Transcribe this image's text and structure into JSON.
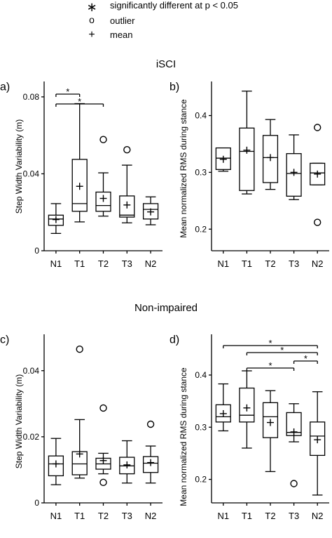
{
  "legend": {
    "items": [
      {
        "symbol": "∗",
        "text": "significantly different at p < 0.05"
      },
      {
        "symbol": "o",
        "text": "outlier"
      },
      {
        "symbol": "+",
        "text": "mean"
      }
    ]
  },
  "headings": {
    "group_top": "iSCI",
    "group_bottom": "Non-impaired"
  },
  "chart_data": [
    {
      "type": "box",
      "panel_label": "a)",
      "ylabel": "Step Width Variability (m)",
      "categories": [
        "N1",
        "T1",
        "T2",
        "T3",
        "N2"
      ],
      "ylim": [
        0,
        0.088
      ],
      "yticks": [
        0,
        0.04,
        0.08
      ],
      "ytick_labels": [
        "0",
        "0.04",
        "0.08"
      ],
      "boxes": [
        {
          "name": "N1",
          "whislo": 0.009,
          "q1": 0.0132,
          "med": 0.0165,
          "q3": 0.0185,
          "whishi": 0.0245,
          "mean": 0.0162,
          "fliers": []
        },
        {
          "name": "T1",
          "whislo": 0.015,
          "q1": 0.0205,
          "med": 0.0245,
          "q3": 0.0475,
          "whishi": 0.0765,
          "mean": 0.0335,
          "fliers": []
        },
        {
          "name": "T2",
          "whislo": 0.018,
          "q1": 0.0205,
          "med": 0.0235,
          "q3": 0.0305,
          "whishi": 0.0405,
          "mean": 0.0272,
          "fliers": [
            0.0578
          ]
        },
        {
          "name": "T3",
          "whislo": 0.0145,
          "q1": 0.0175,
          "med": 0.0185,
          "q3": 0.0285,
          "whishi": 0.0445,
          "mean": 0.0238,
          "fliers": [
            0.0525
          ]
        },
        {
          "name": "N2",
          "whislo": 0.0135,
          "q1": 0.0165,
          "med": 0.0215,
          "q3": 0.0245,
          "whishi": 0.028,
          "mean": 0.0202,
          "fliers": []
        }
      ],
      "significance": [
        {
          "from": "N1",
          "to": "T1",
          "label": "*"
        },
        {
          "from": "N1",
          "to": "T2",
          "label": "*"
        }
      ]
    },
    {
      "type": "box",
      "panel_label": "b)",
      "ylabel": "Mean normalized RMS during stance",
      "categories": [
        "N1",
        "T1",
        "T2",
        "T3",
        "N2"
      ],
      "ylim": [
        0.162,
        0.46
      ],
      "yticks": [
        0.2,
        0.3,
        0.4
      ],
      "ytick_labels": [
        "0.2",
        "0.3",
        "0.4"
      ],
      "boxes": [
        {
          "name": "N1",
          "whislo": 0.302,
          "q1": 0.305,
          "med": 0.325,
          "q3": 0.343,
          "whishi": 0.343,
          "mean": 0.323,
          "fliers": []
        },
        {
          "name": "T1",
          "whislo": 0.262,
          "q1": 0.268,
          "med": 0.337,
          "q3": 0.378,
          "whishi": 0.443,
          "mean": 0.339,
          "fliers": []
        },
        {
          "name": "T2",
          "whislo": 0.27,
          "q1": 0.282,
          "med": 0.326,
          "q3": 0.365,
          "whishi": 0.393,
          "mean": 0.326,
          "fliers": []
        },
        {
          "name": "T3",
          "whislo": 0.252,
          "q1": 0.258,
          "med": 0.298,
          "q3": 0.333,
          "whishi": 0.366,
          "mean": 0.3,
          "fliers": []
        },
        {
          "name": "N2",
          "whislo": 0.278,
          "q1": 0.278,
          "med": 0.299,
          "q3": 0.316,
          "whishi": 0.316,
          "mean": 0.297,
          "fliers": [
            0.379,
            0.212
          ]
        }
      ],
      "significance": []
    },
    {
      "type": "box",
      "panel_label": "c)",
      "ylabel": "Step Width Variability (m)",
      "categories": [
        "N1",
        "T1",
        "T2",
        "T3",
        "N2"
      ],
      "ylim": [
        0,
        0.051
      ],
      "yticks": [
        0,
        0.02,
        0.04
      ],
      "ytick_labels": [
        "0",
        "0.02",
        "0.04"
      ],
      "boxes": [
        {
          "name": "N1",
          "whislo": 0.0055,
          "q1": 0.0082,
          "med": 0.0118,
          "q3": 0.0142,
          "whishi": 0.0195,
          "mean": 0.0118,
          "fliers": []
        },
        {
          "name": "T1",
          "whislo": 0.0075,
          "q1": 0.0085,
          "med": 0.0118,
          "q3": 0.0155,
          "whishi": 0.0252,
          "mean": 0.0148,
          "fliers": [
            0.0465
          ]
        },
        {
          "name": "T2",
          "whislo": 0.0088,
          "q1": 0.0102,
          "med": 0.0118,
          "q3": 0.0135,
          "whishi": 0.015,
          "mean": 0.0128,
          "fliers": [
            0.0287,
            0.0062
          ]
        },
        {
          "name": "T3",
          "whislo": 0.006,
          "q1": 0.0088,
          "med": 0.0112,
          "q3": 0.0138,
          "whishi": 0.0188,
          "mean": 0.0115,
          "fliers": []
        },
        {
          "name": "N2",
          "whislo": 0.006,
          "q1": 0.0092,
          "med": 0.012,
          "q3": 0.014,
          "whishi": 0.0172,
          "mean": 0.0122,
          "fliers": [
            0.0238
          ]
        }
      ],
      "significance": []
    },
    {
      "type": "box",
      "panel_label": "d)",
      "ylabel": "Mean normalized RMS during stance",
      "categories": [
        "N1",
        "T1",
        "T2",
        "T3",
        "N2"
      ],
      "ylim": [
        0.155,
        0.478
      ],
      "yticks": [
        0.2,
        0.3,
        0.4
      ],
      "ytick_labels": [
        "0.2",
        "0.3",
        "0.4"
      ],
      "boxes": [
        {
          "name": "N1",
          "whislo": 0.293,
          "q1": 0.31,
          "med": 0.32,
          "q3": 0.343,
          "whishi": 0.383,
          "mean": 0.326,
          "fliers": []
        },
        {
          "name": "T1",
          "whislo": 0.26,
          "q1": 0.31,
          "med": 0.323,
          "q3": 0.375,
          "whishi": 0.408,
          "mean": 0.337,
          "fliers": []
        },
        {
          "name": "T2",
          "whislo": 0.215,
          "q1": 0.28,
          "med": 0.32,
          "q3": 0.347,
          "whishi": 0.37,
          "mean": 0.309,
          "fliers": []
        },
        {
          "name": "T3",
          "whislo": 0.272,
          "q1": 0.284,
          "med": 0.29,
          "q3": 0.328,
          "whishi": 0.345,
          "mean": 0.291,
          "fliers": [
            0.192
          ]
        },
        {
          "name": "N2",
          "whislo": 0.17,
          "q1": 0.246,
          "med": 0.283,
          "q3": 0.31,
          "whishi": 0.368,
          "mean": 0.276,
          "fliers": []
        }
      ],
      "significance": [
        {
          "from": "N1",
          "to": "N2",
          "label": "*"
        },
        {
          "from": "T1",
          "to": "N2",
          "label": "*"
        },
        {
          "from": "T3",
          "to": "N2",
          "label": "*"
        },
        {
          "from": "T1",
          "to": "T3",
          "label": "*"
        }
      ]
    }
  ]
}
